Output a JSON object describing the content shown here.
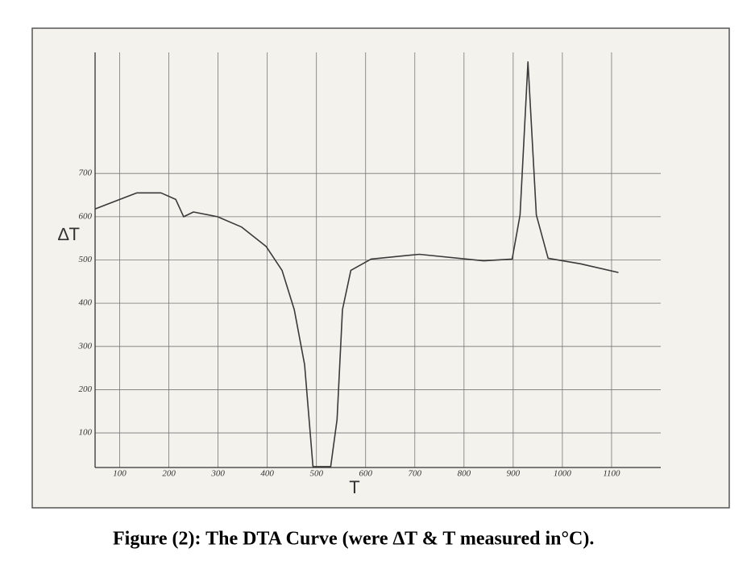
{
  "chart_data": {
    "type": "line",
    "caption": "Figure (2): The DTA Curve (were ∆T & T measured in°C).",
    "x_label": "T",
    "y_label": "∆T",
    "x": [
      50,
      135,
      184,
      214,
      230,
      250,
      299,
      348,
      398,
      430,
      455,
      476,
      493,
      529,
      542,
      553,
      570,
      611,
      709,
      840,
      898,
      914,
      930,
      947,
      971,
      1037,
      1114
    ],
    "series": [
      {
        "color": "#3a3a3a",
        "values": [
          618,
          655,
          655,
          640,
          600,
          611,
          600,
          576,
          531,
          476,
          385,
          258,
          22,
          22,
          131,
          385,
          476,
          502,
          513,
          498,
          502,
          604,
          958,
          604,
          504,
          491,
          471
        ]
      }
    ],
    "xlim": [
      50,
      1200
    ],
    "ylim": [
      20,
      980
    ],
    "xticks": [
      100,
      200,
      300,
      400,
      500,
      600,
      700,
      800,
      900,
      1000,
      1100
    ],
    "yticks": [
      100,
      200,
      300,
      400,
      500,
      600,
      700
    ],
    "grid": true
  }
}
